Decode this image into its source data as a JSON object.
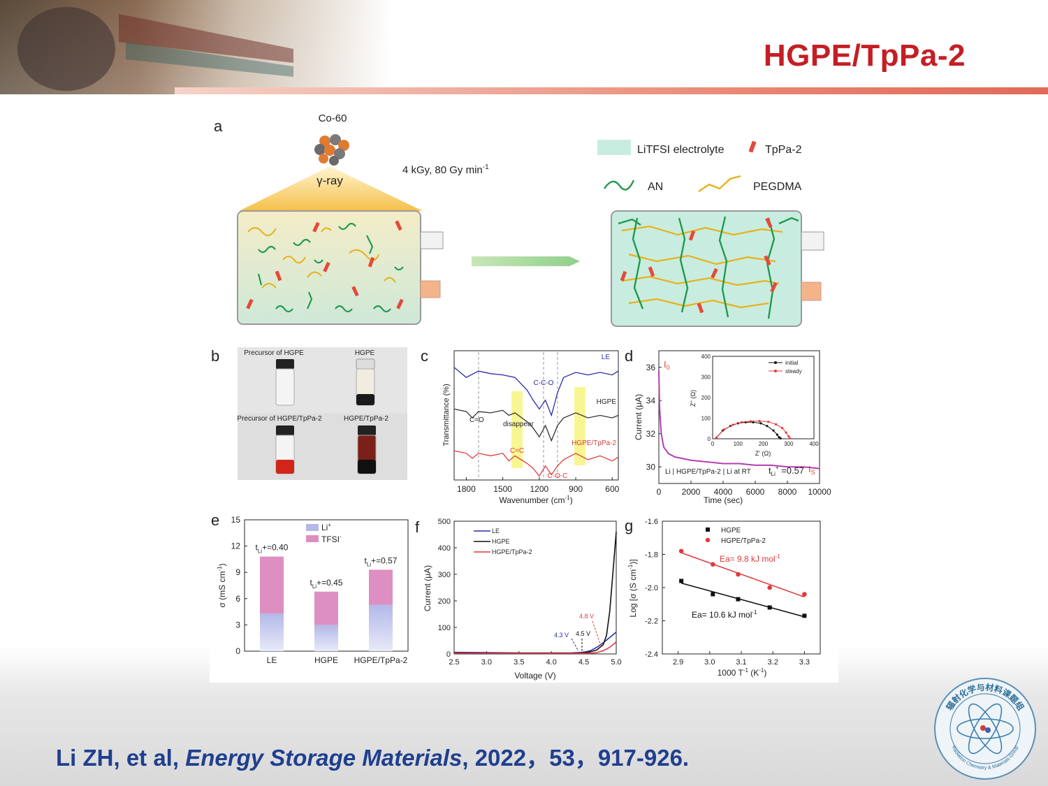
{
  "slide": {
    "title": "HGPE/TpPa-2",
    "citation": {
      "authors": "Li ZH, et al, ",
      "journal": "Energy Storage Materials",
      "rest": ", 2022，53，917-926."
    },
    "logo_text": "辐射化学与材料课题组",
    "logo_subtext": "Radiation Chemistry & Materials Group"
  },
  "colors": {
    "title": "#c41e24",
    "citation": "#1f3f8f",
    "blue": "#2a2aa8",
    "red": "#e03a3a",
    "black": "#111111",
    "green": "#1f9a4e",
    "gold": "#e7b21a"
  },
  "panel_a": {
    "label": "a",
    "source_label": "Co-60",
    "ray_label": "γ-ray",
    "dose_label": "4 kGy, 80 Gy min",
    "dose_sup": "-1",
    "legend": {
      "electrolyte": "LiTFSI electrolyte",
      "tppa": "TpPa-2",
      "an": "AN",
      "pegdma": "PEGDMA"
    }
  },
  "panel_b": {
    "label": "b",
    "photos": [
      "Precursor of HGPE",
      "HGPE",
      "Precursor of HGPE/TpPa-2",
      "HGPE/TpPa-2"
    ]
  },
  "panel_c": {
    "label": "c",
    "ylabel": "Transmittance (%)",
    "xlabel": "Wavenumber (cm",
    "xlabel_sup": "-1",
    "xlabel_end": ")",
    "xticks": [
      "1800",
      "1500",
      "1200",
      "900",
      "600"
    ],
    "series": [
      "LE",
      "HGPE",
      "HGPE/TpPa-2"
    ],
    "annotations": {
      "coc_top": "C-C-O",
      "co": "C=O",
      "disappear": "disappear",
      "cc": "C=C",
      "coc_bottom": "C-O-C"
    }
  },
  "panel_d": {
    "label": "d",
    "ylabel": "Current (μA)",
    "xlabel": "Time (sec)",
    "yticks": [
      "36",
      "34",
      "32",
      "30"
    ],
    "xticks": [
      "0",
      "2000",
      "4000",
      "6000",
      "8000",
      "10000"
    ],
    "i0": "I",
    "i0_sub": "0",
    "is": "I",
    "is_sub": "S",
    "cell_label": "Li | HGPE/TpPa-2 | Li at RT",
    "tli": "t",
    "tli_sub": "Li",
    "tli_sup": "+",
    "tli_value": " =0.57",
    "inset": {
      "ylabel": "Z'' (Ω)",
      "xlabel": "Z' (Ω)",
      "yticks": [
        "400",
        "300",
        "200",
        "100",
        "0"
      ],
      "xticks": [
        "0",
        "100",
        "200",
        "300",
        "400"
      ],
      "legend": [
        "initial",
        "steady"
      ]
    }
  },
  "panel_e": {
    "label": "e",
    "ylabel": "σ (mS cm",
    "ylabel_sup": "-1",
    "ylabel_end": ")",
    "yticks": [
      "15",
      "12",
      "9",
      "6",
      "3",
      "0"
    ],
    "legend": [
      {
        "name": "Li",
        "sup": "+"
      },
      {
        "name": "TFSI",
        "sup": "-"
      }
    ],
    "bar_notes": [
      {
        "t": "t",
        "sub": "Li",
        "tail": "+=0.40"
      },
      {
        "t": "t",
        "sub": "Li",
        "tail": "+=0.45"
      },
      {
        "t": "t",
        "sub": "Li",
        "tail": "+=0.57"
      }
    ]
  },
  "panel_f": {
    "label": "f",
    "ylabel": "Current (μA)",
    "xlabel": "Voltage (V)",
    "yticks": [
      "500",
      "400",
      "300",
      "200",
      "100",
      "0"
    ],
    "xticks": [
      "2.5",
      "3.0",
      "3.5",
      "4.0",
      "4.5",
      "5.0"
    ],
    "series": [
      "LE",
      "HGPE",
      "HGPE/TpPa-2"
    ],
    "onsets": [
      "4.3 V",
      "4.5 V",
      "4.8 V"
    ]
  },
  "panel_g": {
    "label": "g",
    "ylabel": "Log [σ (S cm",
    "ylabel_sup": "-1",
    "ylabel_end": ")]",
    "xlabel": "1000 T",
    "xlabel_sup": "-1",
    "xlabel_end": " (K",
    "xlabel_sup2": "-1",
    "xlabel_end2": ")",
    "yticks": [
      "-1.6",
      "-1.8",
      "-2.0",
      "-2.2",
      "-2.4"
    ],
    "xticks": [
      "2.9",
      "3.0",
      "3.1",
      "3.2",
      "3.3"
    ],
    "series": [
      "HGPE",
      "HGPE/TpPa-2"
    ],
    "ea_red": "Ea= 9.8 kJ mol",
    "ea_red_sup": "-1",
    "ea_black": "Ea= 10.6 kJ mol",
    "ea_black_sup": "-1"
  },
  "chart_data": [
    {
      "type": "bar",
      "panel": "e",
      "categories": [
        "LE",
        "HGPE",
        "HGPE/TpPa-2"
      ],
      "series": [
        {
          "name": "Li+",
          "values": [
            4.3,
            3.0,
            5.3
          ]
        },
        {
          "name": "TFSI-",
          "values": [
            6.5,
            3.8,
            4.0
          ]
        }
      ],
      "ylabel": "σ (mS cm-1)",
      "ylim": [
        0,
        15
      ]
    },
    {
      "type": "scatter",
      "panel": "g",
      "xlabel": "1000 T-1 (K-1)",
      "ylabel": "Log [σ (S cm-1)]",
      "xlim": [
        2.85,
        3.35
      ],
      "ylim": [
        -2.4,
        -1.6
      ],
      "series": [
        {
          "name": "HGPE",
          "x": [
            2.91,
            3.01,
            3.09,
            3.19,
            3.3
          ],
          "y": [
            -1.96,
            -2.04,
            -2.07,
            -2.12,
            -2.17
          ]
        },
        {
          "name": "HGPE/TpPa-2",
          "x": [
            2.91,
            3.01,
            3.09,
            3.19,
            3.3
          ],
          "y": [
            -1.78,
            -1.86,
            -1.92,
            -2.0,
            -2.04
          ]
        }
      ]
    },
    {
      "type": "line",
      "panel": "f",
      "xlabel": "Voltage (V)",
      "ylabel": "Current (μA)",
      "xlim": [
        2.5,
        5.0
      ],
      "ylim": [
        0,
        500
      ],
      "series": [
        {
          "name": "LE",
          "x": [
            2.5,
            3.0,
            3.5,
            4.0,
            4.3,
            4.5,
            4.6,
            4.7,
            4.8,
            4.9,
            5.0
          ],
          "y": [
            6,
            5,
            4,
            4,
            4,
            6,
            12,
            25,
            42,
            62,
            82
          ]
        },
        {
          "name": "HGPE",
          "x": [
            2.5,
            3.0,
            3.5,
            4.0,
            4.3,
            4.5,
            4.6,
            4.7,
            4.8,
            4.85,
            4.9,
            4.95,
            5.0
          ],
          "y": [
            4,
            3,
            3,
            3,
            3,
            4,
            8,
            15,
            35,
            70,
            160,
            310,
            460
          ]
        },
        {
          "name": "HGPE/TpPa-2",
          "x": [
            2.5,
            3.0,
            3.5,
            4.0,
            4.3,
            4.5,
            4.6,
            4.7,
            4.8,
            4.9,
            5.0
          ],
          "y": [
            3,
            3,
            2,
            2,
            2,
            2,
            3,
            5,
            12,
            25,
            45
          ]
        }
      ]
    },
    {
      "type": "line",
      "panel": "d",
      "xlabel": "Time (sec)",
      "ylabel": "Current (μA)",
      "xlim": [
        0,
        10000
      ],
      "ylim": [
        29,
        37
      ],
      "series": [
        {
          "name": "polarization current",
          "x": [
            0,
            50,
            150,
            300,
            600,
            1000,
            1500,
            2000,
            3000,
            4000,
            5000,
            6000,
            7000,
            8000,
            9000,
            10000
          ],
          "y": [
            35.8,
            33.5,
            32.0,
            31.2,
            30.8,
            30.6,
            30.5,
            30.4,
            30.3,
            30.2,
            30.2,
            30.1,
            30.1,
            30.0,
            30.0,
            29.9
          ]
        }
      ]
    },
    {
      "type": "scatter",
      "panel": "d-inset",
      "xlabel": "Z' (Ω)",
      "ylabel": "Z'' (Ω)",
      "xlim": [
        0,
        400
      ],
      "ylim": [
        0,
        400
      ],
      "series": [
        {
          "name": "initial",
          "x": [
            15,
            40,
            70,
            100,
            130,
            160,
            190,
            215,
            240,
            255,
            262,
            268
          ],
          "y": [
            5,
            40,
            62,
            75,
            80,
            80,
            75,
            62,
            40,
            20,
            8,
            2
          ]
        },
        {
          "name": "steady",
          "x": [
            15,
            45,
            80,
            115,
            150,
            185,
            220,
            250,
            275,
            290,
            300,
            305
          ],
          "y": [
            5,
            45,
            68,
            80,
            85,
            86,
            82,
            70,
            52,
            30,
            12,
            2
          ]
        }
      ]
    },
    {
      "type": "line",
      "panel": "c",
      "xlabel": "Wavenumber (cm-1)",
      "ylabel": "Transmittance (%)",
      "xlim": [
        1900,
        550
      ],
      "series": [
        {
          "name": "LE",
          "x": [
            1900,
            1800,
            1700,
            1600,
            1500,
            1400,
            1300,
            1250,
            1200,
            1150,
            1100,
            1050,
            1000,
            900,
            800,
            700,
            600,
            550
          ],
          "y": [
            0.88,
            0.8,
            0.85,
            0.83,
            0.82,
            0.8,
            0.7,
            0.62,
            0.55,
            0.62,
            0.5,
            0.68,
            0.8,
            0.84,
            0.82,
            0.84,
            0.82,
            0.85
          ]
        },
        {
          "name": "HGPE",
          "x": [
            1900,
            1800,
            1750,
            1700,
            1600,
            1500,
            1450,
            1400,
            1300,
            1250,
            1200,
            1150,
            1100,
            1050,
            1000,
            900,
            800,
            700,
            600,
            550
          ],
          "y": [
            0.55,
            0.53,
            0.48,
            0.53,
            0.52,
            0.54,
            0.5,
            0.52,
            0.45,
            0.4,
            0.33,
            0.42,
            0.3,
            0.42,
            0.48,
            0.52,
            0.48,
            0.5,
            0.48,
            0.5
          ]
        },
        {
          "name": "HGPE/TpPa-2",
          "x": [
            1900,
            1800,
            1750,
            1700,
            1600,
            1500,
            1450,
            1400,
            1300,
            1250,
            1200,
            1150,
            1100,
            1050,
            1000,
            900,
            800,
            700,
            600,
            550
          ],
          "y": [
            0.22,
            0.2,
            0.16,
            0.2,
            0.18,
            0.2,
            0.14,
            0.18,
            0.12,
            0.08,
            0.02,
            0.1,
            0.03,
            0.1,
            0.15,
            0.2,
            0.15,
            0.18,
            0.14,
            0.17
          ]
        }
      ]
    }
  ]
}
